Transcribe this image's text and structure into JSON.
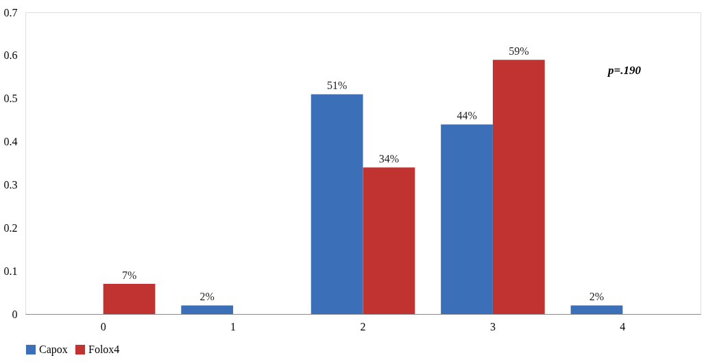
{
  "chart_data": {
    "type": "bar",
    "categories": [
      "0",
      "1",
      "2",
      "3",
      "4"
    ],
    "series": [
      {
        "name": "Capox",
        "color": "#3b70b9",
        "values": [
          null,
          0.02,
          0.51,
          0.44,
          0.02
        ],
        "value_labels": [
          null,
          "2%",
          "51%",
          "44%",
          "2%"
        ]
      },
      {
        "name": "Folox4",
        "color": "#c03330",
        "values": [
          0.07,
          null,
          0.34,
          0.59,
          null
        ],
        "value_labels": [
          "7%",
          null,
          "34%",
          "59%",
          null
        ]
      }
    ],
    "ylim": [
      0,
      0.7
    ],
    "yticks": [
      0,
      0.1,
      0.2,
      0.3,
      0.4,
      0.5,
      0.6,
      0.7
    ],
    "grid": false,
    "legend": "bottom",
    "annotations": [
      "p=.190"
    ]
  }
}
